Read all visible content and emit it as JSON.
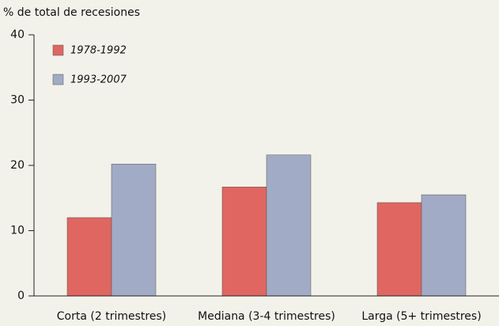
{
  "chart_data": {
    "type": "bar",
    "y_axis_label": "% de total de recesiones",
    "categories": [
      "Corta (2 trimestres)",
      "Mediana (3-4 trimestres)",
      "Larga (5+ trimestres)"
    ],
    "series": [
      {
        "name": "1978-1992",
        "color": "#e06661",
        "values": [
          12.0,
          16.7,
          14.3
        ]
      },
      {
        "name": "1993-2007",
        "color": "#a2abc5",
        "values": [
          20.2,
          21.6,
          15.5
        ]
      }
    ],
    "ylim": [
      0,
      40
    ],
    "yticks": [
      0,
      10,
      20,
      30,
      40
    ],
    "grid": false,
    "legend": "top-left"
  }
}
